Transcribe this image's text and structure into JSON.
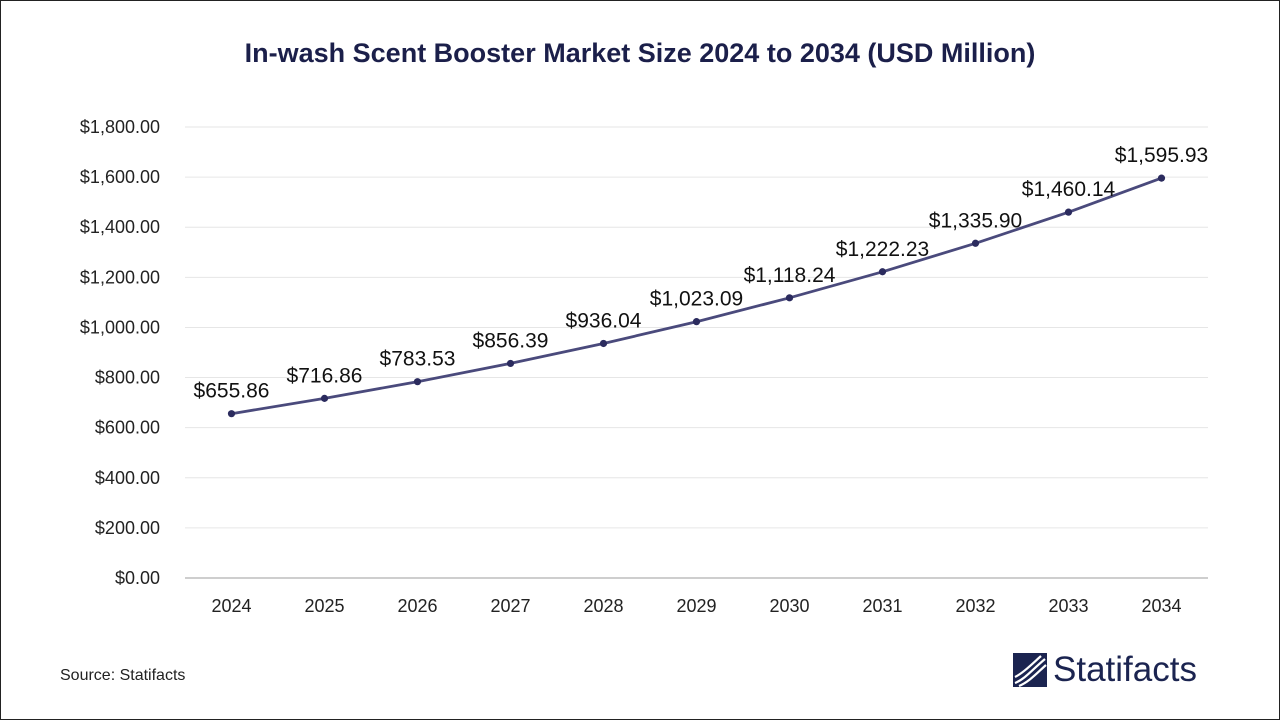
{
  "header": {
    "title": "In-wash Scent Booster Market Size 2024 to 2034 (USD Million)"
  },
  "footer": {
    "source": "Source: Statifacts",
    "brand": "Statifacts"
  },
  "colors": {
    "line": "#4a4a7c",
    "marker": "#2b2b5e",
    "grid": "#e6e6e6",
    "axis": "#bdbdbd",
    "title": "#1b1f4a",
    "brand": "#1b2450"
  },
  "chart_data": {
    "type": "line",
    "title": "In-wash Scent Booster Market Size 2024 to 2034 (USD Million)",
    "xlabel": "",
    "ylabel": "",
    "categories": [
      "2024",
      "2025",
      "2026",
      "2027",
      "2028",
      "2029",
      "2030",
      "2031",
      "2032",
      "2033",
      "2034"
    ],
    "series": [
      {
        "values": [
          655.86,
          716.86,
          783.53,
          856.39,
          936.04,
          1023.09,
          1118.24,
          1222.23,
          1335.9,
          1460.14,
          1595.93
        ]
      }
    ],
    "data_labels": [
      "$655.86",
      "$716.86",
      "$783.53",
      "$856.39",
      "$936.04",
      "$1,023.09",
      "$1,118.24",
      "$1,222.23",
      "$1,335.90",
      "$1,460.14",
      "$1,595.93"
    ],
    "yticks": [
      0,
      200,
      400,
      600,
      800,
      1000,
      1200,
      1400,
      1600,
      1800
    ],
    "ytick_labels": [
      "$0.00",
      "$200.00",
      "$400.00",
      "$600.00",
      "$800.00",
      "$1,000.00",
      "$1,200.00",
      "$1,400.00",
      "$1,600.00",
      "$1,800.00"
    ],
    "ylim": [
      0,
      1800
    ],
    "grid": true,
    "legend": "none"
  }
}
